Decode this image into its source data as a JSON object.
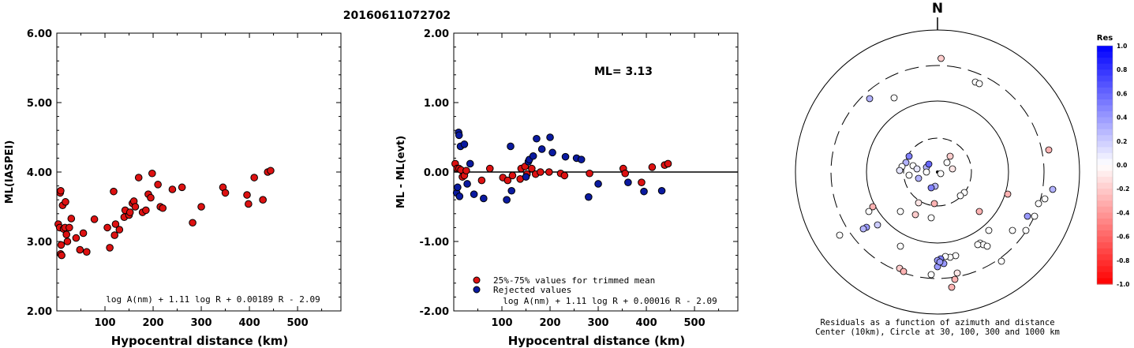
{
  "title": "20160611072702",
  "chart_data": [
    {
      "type": "scatter",
      "xlabel": "Hypocentral distance (km)",
      "ylabel": "ML(IASPEI)",
      "xlim": [
        0,
        590
      ],
      "ylim": [
        2.0,
        6.0
      ],
      "x_ticks": [
        "100",
        "200",
        "300",
        "400",
        "500"
      ],
      "x_tick_values": [
        100,
        200,
        300,
        400,
        500
      ],
      "y_ticks": [
        "2.00",
        "3.00",
        "4.00",
        "5.00",
        "6.00"
      ],
      "y_tick_values": [
        2,
        3,
        4,
        5,
        6
      ],
      "formula": "log A(nm) + 1.11 log R + 0.00189 R - 2.09",
      "point_color": "#dd1111",
      "points": [
        [
          3,
          3.25
        ],
        [
          6,
          3.2
        ],
        [
          7,
          3.7
        ],
        [
          8,
          3.73
        ],
        [
          8,
          2.82
        ],
        [
          9,
          2.95
        ],
        [
          10,
          2.8
        ],
        [
          12,
          3.52
        ],
        [
          14,
          3.18
        ],
        [
          17,
          3.2
        ],
        [
          18,
          3.57
        ],
        [
          20,
          3.1
        ],
        [
          22,
          3.0
        ],
        [
          26,
          3.2
        ],
        [
          30,
          3.33
        ],
        [
          40,
          3.05
        ],
        [
          48,
          2.88
        ],
        [
          55,
          3.12
        ],
        [
          62,
          2.85
        ],
        [
          78,
          3.32
        ],
        [
          105,
          3.2
        ],
        [
          110,
          2.91
        ],
        [
          118,
          3.72
        ],
        [
          120,
          3.09
        ],
        [
          122,
          3.25
        ],
        [
          130,
          3.17
        ],
        [
          140,
          3.35
        ],
        [
          142,
          3.45
        ],
        [
          150,
          3.38
        ],
        [
          152,
          3.42
        ],
        [
          157,
          3.55
        ],
        [
          160,
          3.58
        ],
        [
          163,
          3.5
        ],
        [
          170,
          3.92
        ],
        [
          178,
          3.42
        ],
        [
          185,
          3.45
        ],
        [
          190,
          3.68
        ],
        [
          195,
          3.63
        ],
        [
          198,
          3.98
        ],
        [
          210,
          3.82
        ],
        [
          215,
          3.5
        ],
        [
          220,
          3.48
        ],
        [
          240,
          3.75
        ],
        [
          260,
          3.78
        ],
        [
          282,
          3.27
        ],
        [
          300,
          3.5
        ],
        [
          345,
          3.78
        ],
        [
          350,
          3.7
        ],
        [
          395,
          3.67
        ],
        [
          398,
          3.54
        ],
        [
          410,
          3.92
        ],
        [
          428,
          3.6
        ],
        [
          438,
          4.0
        ],
        [
          444,
          4.02
        ]
      ]
    },
    {
      "type": "scatter",
      "xlabel": "Hypocentral distance (km)",
      "ylabel": "ML - ML(evt)",
      "xlim": [
        0,
        590
      ],
      "ylim": [
        -2.0,
        2.0
      ],
      "x_ticks": [
        "100",
        "200",
        "300",
        "400",
        "500"
      ],
      "x_tick_values": [
        100,
        200,
        300,
        400,
        500
      ],
      "y_ticks": [
        "-2.00",
        "-1.00",
        "0.00",
        "1.00",
        "2.00"
      ],
      "y_tick_values": [
        -2,
        -1,
        0,
        1,
        2
      ],
      "reference_line": 0.0,
      "annotation": "ML= 3.13",
      "legend": [
        {
          "label": "25%-75% values for trimmed mean",
          "color": "#dd1111"
        },
        {
          "label": "Rejected values",
          "color": "#0a1aa0"
        }
      ],
      "formula": "log A(nm) + 1.11 log R + 0.00016 R - 2.09",
      "series": [
        {
          "name": "25%-75% values for trimmed mean",
          "color": "#dd1111",
          "points": [
            [
              3,
              0.12
            ],
            [
              7,
              0.05
            ],
            [
              11,
              0.05
            ],
            [
              15,
              0.03
            ],
            [
              18,
              -0.07
            ],
            [
              22,
              -0.05
            ],
            [
              26,
              0.02
            ],
            [
              58,
              -0.12
            ],
            [
              75,
              0.05
            ],
            [
              102,
              -0.08
            ],
            [
              112,
              -0.12
            ],
            [
              122,
              -0.05
            ],
            [
              138,
              -0.1
            ],
            [
              140,
              0.05
            ],
            [
              148,
              0.08
            ],
            [
              152,
              -0.03
            ],
            [
              162,
              0.05
            ],
            [
              170,
              -0.03
            ],
            [
              180,
              0.0
            ],
            [
              198,
              0.0
            ],
            [
              222,
              -0.02
            ],
            [
              230,
              -0.05
            ],
            [
              282,
              -0.02
            ],
            [
              352,
              0.05
            ],
            [
              356,
              -0.02
            ],
            [
              390,
              -0.15
            ],
            [
              412,
              0.07
            ],
            [
              438,
              0.1
            ],
            [
              445,
              0.12
            ]
          ]
        },
        {
          "name": "Rejected values",
          "color": "#0a1aa0",
          "points": [
            [
              6,
              -0.3
            ],
            [
              8,
              -0.22
            ],
            [
              10,
              0.57
            ],
            [
              11,
              0.53
            ],
            [
              12,
              -0.35
            ],
            [
              14,
              0.37
            ],
            [
              22,
              0.4
            ],
            [
              28,
              -0.17
            ],
            [
              34,
              0.12
            ],
            [
              42,
              -0.32
            ],
            [
              62,
              -0.38
            ],
            [
              110,
              -0.4
            ],
            [
              118,
              0.37
            ],
            [
              120,
              -0.27
            ],
            [
              150,
              -0.07
            ],
            [
              155,
              0.15
            ],
            [
              157,
              0.18
            ],
            [
              165,
              0.23
            ],
            [
              172,
              0.48
            ],
            [
              183,
              0.33
            ],
            [
              200,
              0.5
            ],
            [
              205,
              0.28
            ],
            [
              232,
              0.22
            ],
            [
              255,
              0.2
            ],
            [
              265,
              0.18
            ],
            [
              280,
              -0.36
            ],
            [
              300,
              -0.17
            ],
            [
              362,
              -0.15
            ],
            [
              395,
              -0.28
            ],
            [
              432,
              -0.27
            ]
          ]
        }
      ]
    },
    {
      "type": "scatter",
      "subtype": "polar-residual-map",
      "north_label": "N",
      "caption_line1": "Residuals as a function of azimuth and distance",
      "caption_line2": "Center (10km), Circle at 30, 100, 300 and 1000 km",
      "colorbar": {
        "title": "Res",
        "ticks": [
          "1.0",
          "0.8",
          "0.6",
          "0.4",
          "0.2",
          "0.0",
          "-0.2",
          "-0.4",
          "-0.6",
          "-0.8",
          "-1.0"
        ],
        "tick_values": [
          1.0,
          0.8,
          0.6,
          0.4,
          0.2,
          0.0,
          -0.2,
          -0.4,
          -0.6,
          -0.8,
          -1.0
        ],
        "max_color": "#0000ff",
        "mid_color": "#ffffff",
        "min_color": "#ff0000"
      },
      "points": [
        [
          1192.5,
          74,
          -0.2
        ],
        [
          1236,
          104,
          0
        ],
        [
          1241,
          106,
          0
        ],
        [
          1102,
          125,
          0.3
        ],
        [
          1133,
          124,
          0
        ],
        [
          1329,
          190,
          -0.3
        ],
        [
          1152,
          198,
          0.5
        ],
        [
          1148,
          206,
          0.3
        ],
        [
          1143,
          211,
          0
        ],
        [
          1157,
          210,
          0
        ],
        [
          1140,
          216,
          0.1
        ],
        [
          1152,
          222,
          0
        ],
        [
          1162,
          214,
          0.1
        ],
        [
          1174,
          212,
          0.3
        ],
        [
          1177,
          208,
          0.6
        ],
        [
          1174,
          218,
          0
        ],
        [
          1204,
          198,
          -0.2
        ],
        [
          1207,
          214,
          -0.1
        ],
        [
          1200,
          206,
          0
        ],
        [
          1192,
          220,
          0
        ],
        [
          1185,
          236,
          0.3
        ],
        [
          1180,
          238,
          0.5
        ],
        [
          1164,
          226,
          0.3
        ],
        [
          1164,
          257,
          -0.1
        ],
        [
          1184,
          258,
          -0.3
        ],
        [
          1222,
          244,
          0
        ],
        [
          1217,
          248,
          0
        ],
        [
          1277,
          246,
          -0.3
        ],
        [
          1334,
          240,
          0.3
        ],
        [
          1324,
          252,
          0
        ],
        [
          1316,
          258,
          0
        ],
        [
          1241,
          268,
          -0.3
        ],
        [
          1106,
          262,
          -0.3
        ],
        [
          1101,
          268,
          0
        ],
        [
          1141,
          268,
          0
        ],
        [
          1160,
          272,
          -0.2
        ],
        [
          1180,
          276,
          0
        ],
        [
          1311,
          274,
          0
        ],
        [
          1302,
          274,
          0.4
        ],
        [
          1112,
          285,
          0.2
        ],
        [
          1098,
          288,
          0.4
        ],
        [
          1094,
          290,
          0.3
        ],
        [
          1064,
          298,
          0
        ],
        [
          1253,
          292,
          0
        ],
        [
          1283,
          292,
          0
        ],
        [
          1300,
          292,
          0
        ],
        [
          1141,
          312,
          0
        ],
        [
          1242,
          308,
          0
        ],
        [
          1246,
          310,
          0
        ],
        [
          1251,
          312,
          0
        ],
        [
          1239,
          310,
          0
        ],
        [
          1211,
          324,
          0
        ],
        [
          1204,
          326,
          0
        ],
        [
          1198,
          325,
          0
        ],
        [
          1192,
          328,
          0.5
        ],
        [
          1188,
          330,
          0.4
        ],
        [
          1196,
          334,
          0.4
        ],
        [
          1188,
          338,
          0.4
        ],
        [
          1191,
          332,
          0.4
        ],
        [
          1269,
          331,
          0
        ],
        [
          1140,
          340,
          -0.2
        ],
        [
          1145,
          344,
          -0.3
        ],
        [
          1180,
          348,
          0
        ],
        [
          1213,
          346,
          -0.1
        ],
        [
          1210,
          354,
          -0.3
        ],
        [
          1206,
          364,
          -0.3
        ]
      ]
    }
  ]
}
